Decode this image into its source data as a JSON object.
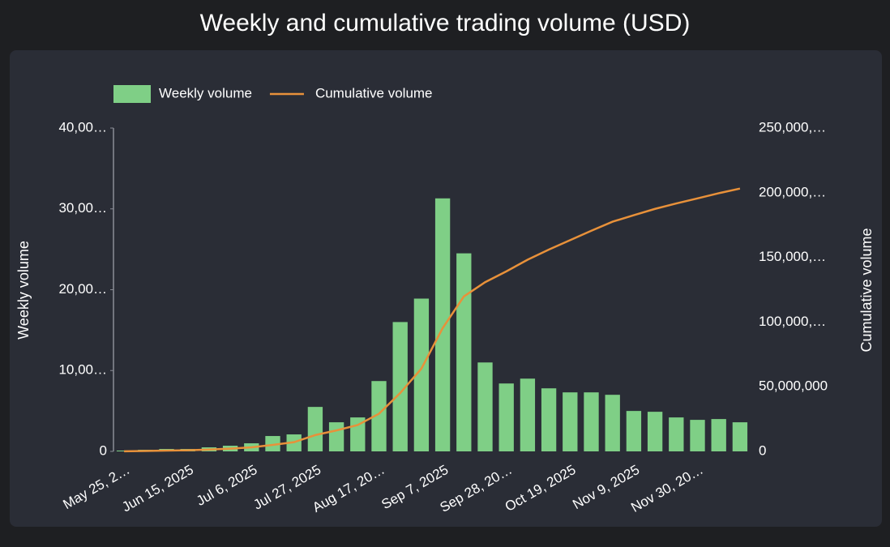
{
  "chart_data": {
    "type": "bar_line",
    "title": "Weekly and cumulative trading volume (USD)",
    "y_label": "Weekly volume",
    "y2_label": "Cumulative volume",
    "categories": [
      "May 25, 2…",
      null,
      null,
      "Jun 15, 2025",
      null,
      null,
      "Jul 6, 2025",
      null,
      null,
      "Jul 27, 2025",
      null,
      null,
      "Aug 17, 20…",
      null,
      null,
      "Sep 7, 2025",
      null,
      null,
      "Sep 28, 20…",
      null,
      null,
      "Oct 19, 2025",
      null,
      null,
      "Nov 9, 2025",
      null,
      null,
      "Nov 30, 20…",
      null,
      null
    ],
    "series": [
      {
        "name": "Weekly volume",
        "color": "#7fcf86",
        "kind": "bar",
        "axis": "y",
        "values": [
          100000,
          200000,
          300000,
          300000,
          500000,
          700000,
          1000000,
          1900000,
          2100000,
          5500000,
          3600000,
          4200000,
          8700000,
          16000000,
          18900000,
          31300000,
          24500000,
          11000000,
          8400000,
          9000000,
          7800000,
          7300000,
          7300000,
          7000000,
          5000000,
          4900000,
          4200000,
          3900000,
          4000000,
          3600000
        ]
      },
      {
        "name": "Cumulative volume",
        "color": "#e8913a",
        "kind": "line",
        "axis": "y2",
        "values": [
          100000,
          300000,
          600000,
          900000,
          1400000,
          2100000,
          3100000,
          5000000,
          7100000,
          12600000,
          16200000,
          20400000,
          29100000,
          45100000,
          64000000,
          95300000,
          119800000,
          130800000,
          139200000,
          148200000,
          156000000,
          163300000,
          170600000,
          177600000,
          182600000,
          187500000,
          191700000,
          195600000,
          199600000,
          203200000
        ]
      }
    ],
    "ylim": [
      0,
      40000000
    ],
    "yticks": [
      0,
      {
        "value": 10000000,
        "label": "10,00…"
      },
      {
        "value": 20000000,
        "label": "20,00…"
      },
      {
        "value": 30000000,
        "label": "30,00…"
      },
      {
        "value": 40000000,
        "label": "40,00…"
      }
    ],
    "y2lim": [
      0,
      250000000
    ],
    "y2ticks": [
      0,
      {
        "value": 50000000,
        "label": "50,000,000"
      },
      {
        "value": 100000000,
        "label": "100,000,…"
      },
      {
        "value": 150000000,
        "label": "150,000,…"
      },
      {
        "value": 200000000,
        "label": "200,000,…"
      },
      {
        "value": 250000000,
        "label": "250,000,…"
      }
    ],
    "legend": "top"
  }
}
